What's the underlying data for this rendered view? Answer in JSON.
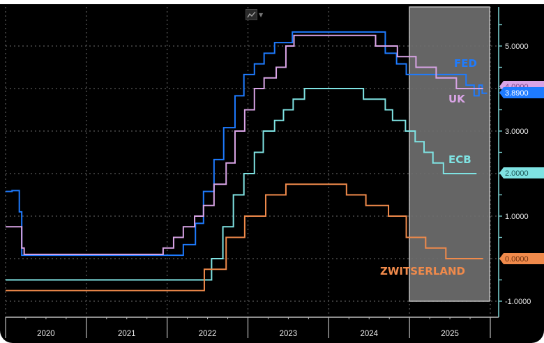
{
  "toolbar": {
    "chart_type_icon": "line-chart-icon",
    "dropdown_icon": "chevron-down-icon"
  },
  "colors": {
    "background": "#000000",
    "grid": "#4a4a4a",
    "forecast_shade": "#6e6e6e",
    "axis": "#7fd9d9",
    "FED": "#1e7bff",
    "UK": "#d9a4e6",
    "ECB": "#7fe3e3",
    "ZWITSERLAND": "#f08a4b"
  },
  "chart_data": {
    "type": "line",
    "subtype": "step",
    "title": "",
    "xlabel": "",
    "ylabel": "",
    "x_tick_labels": [
      "2020",
      "2021",
      "2022",
      "2023",
      "2024",
      "2025"
    ],
    "xlim": [
      "2020-01",
      "2025-12"
    ],
    "ylim": [
      -1.0,
      5.6
    ],
    "y_ticks": [
      5.0,
      3.0,
      2.0,
      1.0,
      0.0,
      -1.0
    ],
    "y_tick_labels": [
      "5.0000",
      "3.0000",
      "2.0000",
      "1.0000",
      "0.0000",
      "-1.0000"
    ],
    "grid": true,
    "forecast_region": {
      "from": "2025-01",
      "to": "2025-12"
    },
    "series": [
      {
        "name": "FED",
        "label": "FED",
        "last_value": "3.8900",
        "steps": [
          [
            2020.0,
            1.58
          ],
          [
            2020.08,
            1.6
          ],
          [
            2020.17,
            1.1
          ],
          [
            2020.2,
            0.08
          ],
          [
            2022.2,
            0.33
          ],
          [
            2022.35,
            0.83
          ],
          [
            2022.45,
            1.58
          ],
          [
            2022.58,
            2.33
          ],
          [
            2022.7,
            3.08
          ],
          [
            2022.84,
            3.83
          ],
          [
            2022.95,
            4.33
          ],
          [
            2023.08,
            4.58
          ],
          [
            2023.2,
            4.83
          ],
          [
            2023.33,
            5.08
          ],
          [
            2023.55,
            5.33
          ],
          [
            2024.7,
            4.83
          ],
          [
            2024.84,
            4.58
          ],
          [
            2024.96,
            4.33
          ],
          [
            2025.7,
            4.08
          ],
          [
            2025.8,
            3.83
          ],
          [
            2025.86,
            4.08
          ],
          [
            2025.9,
            3.89
          ],
          [
            2025.96,
            3.89
          ]
        ]
      },
      {
        "name": "UK",
        "label": "UK",
        "last_value": "4.0000",
        "steps": [
          [
            2020.0,
            0.75
          ],
          [
            2020.2,
            0.25
          ],
          [
            2020.23,
            0.1
          ],
          [
            2021.95,
            0.25
          ],
          [
            2022.08,
            0.5
          ],
          [
            2022.2,
            0.75
          ],
          [
            2022.34,
            1.0
          ],
          [
            2022.45,
            1.25
          ],
          [
            2022.58,
            1.75
          ],
          [
            2022.73,
            2.25
          ],
          [
            2022.84,
            3.0
          ],
          [
            2022.96,
            3.5
          ],
          [
            2023.08,
            4.0
          ],
          [
            2023.2,
            4.25
          ],
          [
            2023.35,
            4.5
          ],
          [
            2023.47,
            5.0
          ],
          [
            2023.57,
            5.25
          ],
          [
            2024.58,
            5.0
          ],
          [
            2024.85,
            4.75
          ],
          [
            2025.08,
            4.5
          ],
          [
            2025.33,
            4.25
          ],
          [
            2025.58,
            4.0
          ],
          [
            2025.91,
            4.0
          ]
        ]
      },
      {
        "name": "ECB",
        "label": "ECB",
        "last_value": "2.0000",
        "steps": [
          [
            2020.0,
            -0.5
          ],
          [
            2022.55,
            0.0
          ],
          [
            2022.69,
            0.75
          ],
          [
            2022.82,
            1.5
          ],
          [
            2022.95,
            2.0
          ],
          [
            2023.08,
            2.5
          ],
          [
            2023.19,
            3.0
          ],
          [
            2023.33,
            3.25
          ],
          [
            2023.44,
            3.5
          ],
          [
            2023.56,
            3.75
          ],
          [
            2023.7,
            4.0
          ],
          [
            2024.43,
            3.75
          ],
          [
            2024.7,
            3.5
          ],
          [
            2024.79,
            3.25
          ],
          [
            2024.95,
            3.0
          ],
          [
            2025.07,
            2.75
          ],
          [
            2025.18,
            2.5
          ],
          [
            2025.29,
            2.25
          ],
          [
            2025.42,
            2.0
          ],
          [
            2025.83,
            2.0
          ]
        ]
      },
      {
        "name": "ZWITSERLAND",
        "label": "ZWITSERLAND",
        "last_value": "0.0000",
        "steps": [
          [
            2020.0,
            -0.75
          ],
          [
            2022.46,
            -0.25
          ],
          [
            2022.73,
            0.5
          ],
          [
            2022.96,
            1.0
          ],
          [
            2023.22,
            1.5
          ],
          [
            2023.47,
            1.75
          ],
          [
            2024.22,
            1.5
          ],
          [
            2024.46,
            1.25
          ],
          [
            2024.74,
            1.0
          ],
          [
            2024.96,
            0.5
          ],
          [
            2025.2,
            0.25
          ],
          [
            2025.45,
            0.0
          ],
          [
            2025.91,
            0.0
          ]
        ]
      }
    ]
  }
}
